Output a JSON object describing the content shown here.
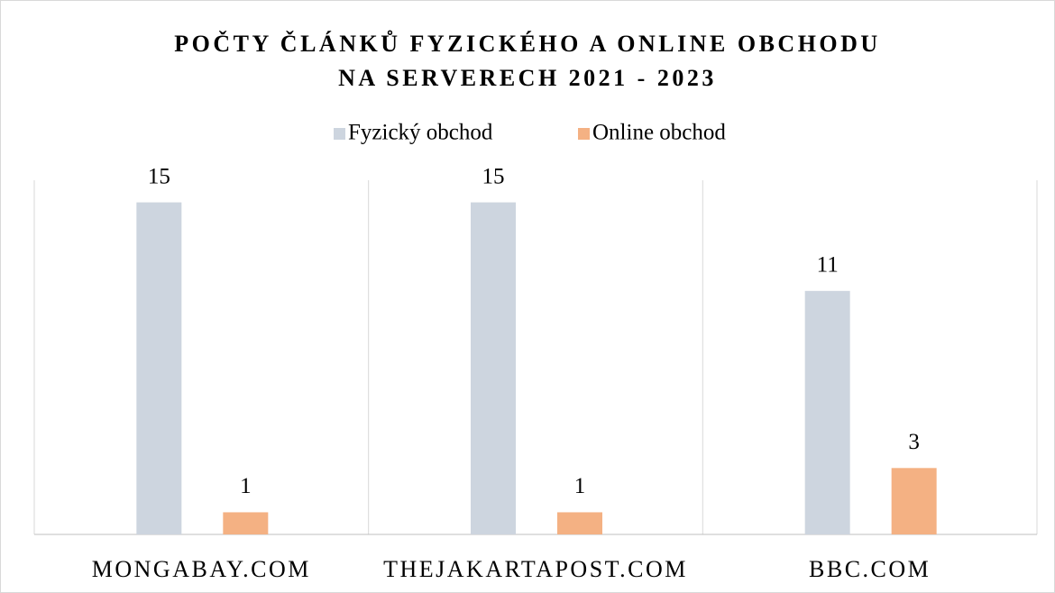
{
  "chart_data": {
    "type": "bar",
    "title": [
      "POČTY ČLÁNKŮ FYZICKÉHO A ONLINE OBCHODU",
      "NA SERVERECH 2021 - 2023"
    ],
    "categories": [
      "MONGABAY.COM",
      "THEJAKARTAPOST.COM",
      "BBC.COM"
    ],
    "series": [
      {
        "name": "Fyzický obchod",
        "color": "#cdd5df",
        "values": [
          15,
          15,
          11
        ]
      },
      {
        "name": "Online obchod",
        "color": "#f4b183",
        "values": [
          1,
          1,
          3
        ]
      }
    ],
    "ylim": [
      0,
      16
    ],
    "legend": "top",
    "grid": false
  }
}
